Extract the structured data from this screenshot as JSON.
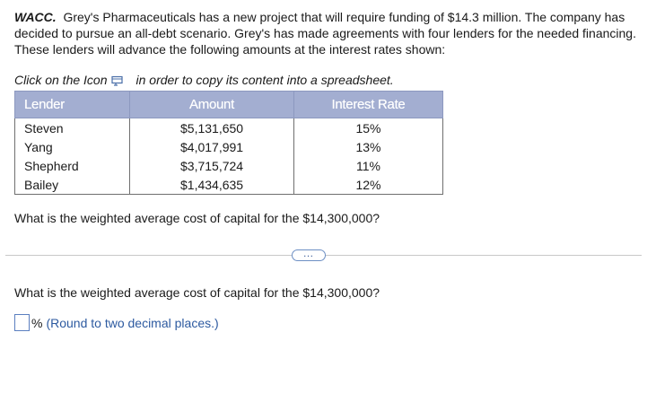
{
  "problem": {
    "tag": "WACC.",
    "text": "Grey's Pharmaceuticals has a new project that will require funding of $14.3 million. The company has decided to pursue an all-debt scenario. Grey's has made agreements with four lenders for the needed financing. These lenders will advance the following amounts at the interest rates shown:"
  },
  "copy_line": {
    "prefix": "Click on the Icon",
    "suffix": "in order to copy its content into a spreadsheet.",
    "icon": "spreadsheet-copy-icon"
  },
  "table": {
    "headers": [
      "Lender",
      "Amount",
      "Interest Rate"
    ],
    "rows": [
      {
        "lender": "Steven",
        "amount": "$5,131,650",
        "rate": "15%"
      },
      {
        "lender": "Yang",
        "amount": "$4,017,991",
        "rate": "13%"
      },
      {
        "lender": "Shepherd",
        "amount": "$3,715,724",
        "rate": "11%"
      },
      {
        "lender": "Bailey",
        "amount": "$1,434,635",
        "rate": "12%"
      }
    ]
  },
  "question1": "What is the weighted average cost of capital for the $14,300,000?",
  "expand_button": "…",
  "question2": "What is the weighted average cost of capital for the $14,300,000?",
  "answer": {
    "value": "",
    "unit": "%",
    "hint": "(Round to two decimal places.)"
  },
  "colors": {
    "header_bg": "#a3aed1",
    "hint_text": "#2d5aa0",
    "input_border": "#5b7fc0"
  }
}
